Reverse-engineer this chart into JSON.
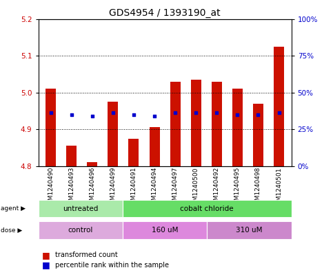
{
  "title": "GDS4954 / 1393190_at",
  "samples": [
    "GSM1240490",
    "GSM1240493",
    "GSM1240496",
    "GSM1240499",
    "GSM1240491",
    "GSM1240494",
    "GSM1240497",
    "GSM1240500",
    "GSM1240492",
    "GSM1240495",
    "GSM1240498",
    "GSM1240501"
  ],
  "bar_values": [
    5.01,
    4.855,
    4.81,
    4.975,
    4.875,
    4.905,
    5.03,
    5.035,
    5.03,
    5.01,
    4.97,
    5.125
  ],
  "blue_dot_values": [
    4.945,
    4.94,
    4.935,
    4.945,
    4.94,
    4.935,
    4.945,
    4.945,
    4.945,
    4.94,
    4.94,
    4.945
  ],
  "bar_bottom": 4.8,
  "ylim_left": [
    4.8,
    5.2
  ],
  "ylim_right": [
    0,
    100
  ],
  "yticks_left": [
    4.8,
    4.9,
    5.0,
    5.1,
    5.2
  ],
  "yticks_right": [
    0,
    25,
    50,
    75,
    100
  ],
  "ytick_labels_right": [
    "0%",
    "25%",
    "50%",
    "75%",
    "100%"
  ],
  "agent_groups": [
    {
      "label": "untreated",
      "start": 0,
      "end": 4,
      "color": "#aaeaaa"
    },
    {
      "label": "cobalt chloride",
      "start": 4,
      "end": 12,
      "color": "#66dd66"
    }
  ],
  "dose_groups": [
    {
      "label": "control",
      "start": 0,
      "end": 4,
      "color": "#ddaadd"
    },
    {
      "label": "160 uM",
      "start": 4,
      "end": 8,
      "color": "#dd88dd"
    },
    {
      "label": "310 uM",
      "start": 8,
      "end": 12,
      "color": "#cc77cc"
    }
  ],
  "bar_color": "#cc1100",
  "blue_dot_color": "#0000cc",
  "bar_width": 0.5,
  "bg_color": "#ffffff",
  "plot_bg": "#ffffff",
  "tick_label_color_left": "#cc0000",
  "tick_label_color_right": "#0000cc",
  "title_fontsize": 10,
  "tick_fontsize": 7.5,
  "xtick_fontsize": 6.5
}
